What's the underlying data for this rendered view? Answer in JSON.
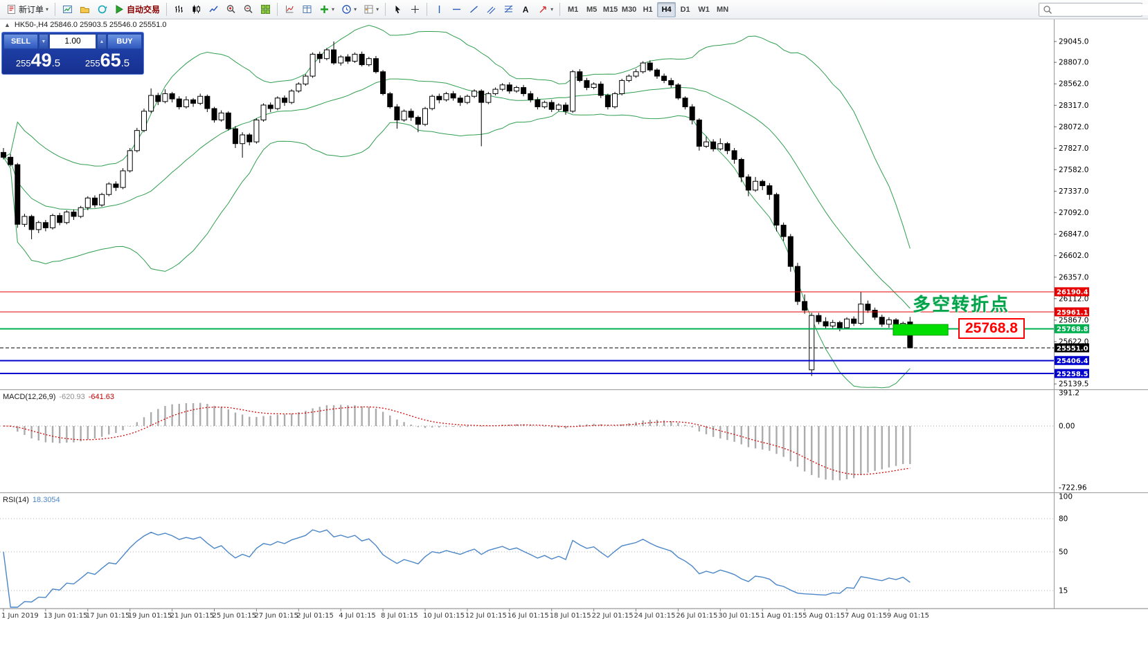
{
  "toolbar": {
    "new_order_label": "新订单",
    "autotrading_label": "自动交易",
    "text_tool_label": "A",
    "timeframes": [
      "M1",
      "M5",
      "M15",
      "M30",
      "H1",
      "H4",
      "D1",
      "W1",
      "MN"
    ],
    "active_timeframe": "H4",
    "search_placeholder": "",
    "icons": [
      "new-order-icon",
      "new-chart-icon",
      "profiles-icon",
      "refresh-icon",
      "autotrading-icon",
      "bar-chart-icon",
      "candlestick-chart-icon",
      "line-chart-icon",
      "zoom-in-icon",
      "zoom-out-icon",
      "tile-windows-icon",
      "indicators-icon",
      "data-window-icon",
      "add-indicator-icon",
      "periods-icon",
      "templates-icon",
      "cursor-icon",
      "crosshair-icon",
      "vertical-line-icon",
      "horizontal-line-icon",
      "trendline-icon",
      "equidistant-channel-icon",
      "fibonacci-icon",
      "text-icon",
      "arrows-icon",
      "search-icon"
    ]
  },
  "one_click": {
    "sell_label": "SELL",
    "buy_label": "BUY",
    "volume": "1.00",
    "sell_price": "25549.5",
    "buy_price": "25565.5",
    "sell_parts": [
      "255",
      "49",
      ".5"
    ],
    "buy_parts": [
      "255",
      "65",
      ".5"
    ],
    "spin_down": "▼",
    "spin_up": "▲"
  },
  "chart": {
    "title": "HK50-,H4  25846.0 25903.5 25546.0 25551.0",
    "symbol": "HK50-",
    "period": "H4",
    "annotation": "多空转折点",
    "callout_price": "25768.8",
    "macd_name": "MACD(12,26,9)",
    "macd_main_value": "-620.93",
    "macd_signal_value": "-641.63",
    "rsi_name": "RSI(14)",
    "rsi_value": "18.3054"
  },
  "colors": {
    "bands": "#2f9e4f",
    "bull_candle": "#ffffff",
    "bear_candle": "#000000",
    "level_red": "#e60000",
    "level_green": "#00b050",
    "level_blue": "#0000cc",
    "current_price_tag": "#000000",
    "highlight_green": "#00dd00",
    "annotation_green": "#00a24a",
    "callout_red": "#ff0000",
    "macd_histogram": "#ababab",
    "macd_signal": "#d40000",
    "rsi_line": "#4a86c8"
  },
  "chart_data": {
    "type": "candlestick",
    "symbol": "HK50-",
    "timeframe": "H4",
    "price_axis_labels": [
      "29045.0",
      "28807.0",
      "28562.0",
      "28317.0",
      "28072.0",
      "27827.0",
      "27582.0",
      "27337.0",
      "27092.0",
      "26847.0",
      "26602.0",
      "26357.0",
      "26112.0",
      "25867.0",
      "25622.0",
      "25139.5"
    ],
    "time_labels": [
      "1 Jun 2019",
      "13 Jun 01:15",
      "17 Jun 01:15",
      "19 Jun 01:15",
      "21 Jun 01:15",
      "25 Jun 01:15",
      "27 Jun 01:15",
      "2 Jul 01:15",
      "4 Jul 01:15",
      "8 Jul 01:15",
      "10 Jul 01:15",
      "12 Jul 01:15",
      "16 Jul 01:15",
      "18 Jul 01:15",
      "22 Jul 01:15",
      "24 Jul 01:15",
      "26 Jul 01:15",
      "30 Jul 01:15",
      "1 Aug 01:15",
      "5 Aug 01:15",
      "7 Aug 01:15",
      "9 Aug 01:15"
    ],
    "label_every_n_bars": 6,
    "levels": [
      {
        "price": 26190.4,
        "color": "#e60000",
        "style": "solid",
        "width": 1
      },
      {
        "price": 25961.1,
        "color": "#e60000",
        "style": "solid",
        "width": 1
      },
      {
        "price": 25768.8,
        "color": "#00b050",
        "style": "solid",
        "width": 2
      },
      {
        "price": 25551.0,
        "color": "#000000",
        "style": "dash",
        "width": 1,
        "is_current_price": true
      },
      {
        "price": 25406.4,
        "color": "#0000cc",
        "style": "solid",
        "width": 2
      },
      {
        "price": 25258.5,
        "color": "#0000cc",
        "style": "solid",
        "width": 2
      }
    ],
    "highlight_box": {
      "bar_start": 126.6,
      "bar_end": 134.4,
      "price_top": 25818,
      "price_bottom": 25695,
      "color": "#00dd00"
    },
    "bollinger": {
      "period": 20,
      "deviation": 2,
      "color": "#2f9e4f"
    },
    "macd": {
      "params": [
        12,
        26,
        9
      ],
      "main_value": -620.93,
      "signal_value": -641.63,
      "axis_labels": [
        "391.2",
        "0.00",
        "-722.96"
      ],
      "histogram_color": "#ababab",
      "signal_color": "#d40000"
    },
    "rsi": {
      "period": 14,
      "value": 18.3054,
      "axis_labels": [
        "100",
        "80",
        "50",
        "15"
      ],
      "levels": [
        80,
        50,
        15
      ],
      "color": "#4a86c8"
    },
    "candles_ohlc": [
      [
        27780,
        27830,
        27700,
        27725
      ],
      [
        27725,
        27760,
        27620,
        27640
      ],
      [
        27640,
        27660,
        26920,
        26960
      ],
      [
        26960,
        27080,
        26930,
        27050
      ],
      [
        27050,
        27070,
        26790,
        26900
      ],
      [
        26900,
        27000,
        26860,
        26980
      ],
      [
        26980,
        27010,
        26880,
        26920
      ],
      [
        26920,
        27080,
        26900,
        27060
      ],
      [
        27060,
        27090,
        26950,
        26980
      ],
      [
        26980,
        27120,
        26960,
        27100
      ],
      [
        27100,
        27130,
        27010,
        27050
      ],
      [
        27050,
        27170,
        27030,
        27150
      ],
      [
        27150,
        27280,
        27120,
        27260
      ],
      [
        27260,
        27290,
        27150,
        27180
      ],
      [
        27180,
        27320,
        27160,
        27300
      ],
      [
        27300,
        27440,
        27280,
        27420
      ],
      [
        27420,
        27450,
        27340,
        27380
      ],
      [
        27380,
        27600,
        27360,
        27570
      ],
      [
        27570,
        27830,
        27550,
        27800
      ],
      [
        27800,
        28060,
        27780,
        28030
      ],
      [
        28030,
        28280,
        28010,
        28250
      ],
      [
        28250,
        28510,
        28230,
        28430
      ],
      [
        28430,
        28460,
        28320,
        28360
      ],
      [
        28360,
        28500,
        28340,
        28450
      ],
      [
        28450,
        28470,
        28350,
        28390
      ],
      [
        28390,
        28420,
        28270,
        28300
      ],
      [
        28300,
        28420,
        28280,
        28380
      ],
      [
        28380,
        28400,
        28300,
        28340
      ],
      [
        28340,
        28450,
        28320,
        28420
      ],
      [
        28420,
        28440,
        28240,
        28280
      ],
      [
        28280,
        28300,
        28120,
        28150
      ],
      [
        28150,
        28260,
        28130,
        28230
      ],
      [
        28230,
        28250,
        28030,
        28050
      ],
      [
        28050,
        28080,
        27830,
        27880
      ],
      [
        27880,
        28010,
        27720,
        27980
      ],
      [
        27980,
        28000,
        27860,
        27900
      ],
      [
        27900,
        28170,
        27880,
        28150
      ],
      [
        28150,
        28340,
        28130,
        28320
      ],
      [
        28320,
        28350,
        28240,
        28280
      ],
      [
        28280,
        28420,
        28260,
        28400
      ],
      [
        28400,
        28430,
        28310,
        28350
      ],
      [
        28350,
        28500,
        28330,
        28480
      ],
      [
        28480,
        28580,
        28460,
        28560
      ],
      [
        28560,
        28670,
        28540,
        28650
      ],
      [
        28650,
        28920,
        28630,
        28900
      ],
      [
        28900,
        28930,
        28800,
        28850
      ],
      [
        28850,
        28970,
        28830,
        28950
      ],
      [
        28950,
        29045,
        28780,
        28800
      ],
      [
        28800,
        28890,
        28770,
        28870
      ],
      [
        28870,
        28900,
        28790,
        28820
      ],
      [
        28820,
        28920,
        28800,
        28900
      ],
      [
        28900,
        28930,
        28760,
        28780
      ],
      [
        28780,
        28870,
        28760,
        28850
      ],
      [
        28850,
        28880,
        28680,
        28700
      ],
      [
        28700,
        28720,
        28430,
        28450
      ],
      [
        28450,
        28470,
        28280,
        28300
      ],
      [
        28300,
        28330,
        28050,
        28150
      ],
      [
        28150,
        28270,
        28130,
        28250
      ],
      [
        28250,
        28280,
        28140,
        28180
      ],
      [
        28180,
        28200,
        28010,
        28100
      ],
      [
        28100,
        28300,
        28080,
        28280
      ],
      [
        28280,
        28440,
        28260,
        28420
      ],
      [
        28420,
        28450,
        28340,
        28380
      ],
      [
        28380,
        28470,
        28360,
        28450
      ],
      [
        28450,
        28480,
        28370,
        28400
      ],
      [
        28400,
        28430,
        28310,
        28350
      ],
      [
        28350,
        28440,
        28330,
        28420
      ],
      [
        28420,
        28500,
        28400,
        28480
      ],
      [
        28480,
        28500,
        27850,
        28350
      ],
      [
        28350,
        28470,
        28330,
        28450
      ],
      [
        28450,
        28520,
        28430,
        28500
      ],
      [
        28500,
        28570,
        28480,
        28550
      ],
      [
        28550,
        28580,
        28450,
        28480
      ],
      [
        28480,
        28540,
        28460,
        28520
      ],
      [
        28520,
        28550,
        28420,
        28450
      ],
      [
        28450,
        28480,
        28350,
        28380
      ],
      [
        28380,
        28410,
        28270,
        28300
      ],
      [
        28300,
        28370,
        28280,
        28350
      ],
      [
        28350,
        28380,
        28240,
        28270
      ],
      [
        28270,
        28340,
        28250,
        28320
      ],
      [
        28320,
        28350,
        28210,
        28250
      ],
      [
        28250,
        28720,
        28230,
        28700
      ],
      [
        28700,
        28730,
        28580,
        28600
      ],
      [
        28600,
        28630,
        28490,
        28520
      ],
      [
        28520,
        28580,
        28500,
        28560
      ],
      [
        28560,
        28590,
        28400,
        28430
      ],
      [
        28430,
        28450,
        28270,
        28300
      ],
      [
        28300,
        28470,
        28280,
        28450
      ],
      [
        28450,
        28620,
        28430,
        28600
      ],
      [
        28600,
        28670,
        28580,
        28650
      ],
      [
        28650,
        28730,
        28630,
        28700
      ],
      [
        28700,
        28820,
        28680,
        28800
      ],
      [
        28800,
        28830,
        28700,
        28720
      ],
      [
        28720,
        28740,
        28620,
        28650
      ],
      [
        28650,
        28680,
        28570,
        28600
      ],
      [
        28600,
        28630,
        28520,
        28550
      ],
      [
        28550,
        28570,
        28380,
        28400
      ],
      [
        28400,
        28420,
        28270,
        28300
      ],
      [
        28300,
        28330,
        28100,
        28150
      ],
      [
        28150,
        28170,
        27800,
        27850
      ],
      [
        27850,
        27960,
        27830,
        27900
      ],
      [
        27900,
        27930,
        27790,
        27820
      ],
      [
        27820,
        27940,
        27800,
        27880
      ],
      [
        27880,
        27900,
        27760,
        27800
      ],
      [
        27800,
        27830,
        27650,
        27700
      ],
      [
        27700,
        27720,
        27440,
        27500
      ],
      [
        27500,
        27530,
        27280,
        27350
      ],
      [
        27350,
        27500,
        27330,
        27450
      ],
      [
        27450,
        27470,
        27350,
        27400
      ],
      [
        27400,
        27430,
        27240,
        27300
      ],
      [
        27300,
        27320,
        26880,
        26950
      ],
      [
        26950,
        26980,
        26770,
        26820
      ],
      [
        26820,
        26850,
        26420,
        26480
      ],
      [
        26480,
        26520,
        26040,
        26080
      ],
      [
        26080,
        26160,
        25940,
        25980
      ],
      [
        25300,
        25950,
        25230,
        25920
      ],
      [
        25920,
        25950,
        25820,
        25850
      ],
      [
        25850,
        25900,
        25760,
        25800
      ],
      [
        25800,
        25870,
        25770,
        25840
      ],
      [
        25840,
        25860,
        25740,
        25780
      ],
      [
        25780,
        25900,
        25760,
        25880
      ],
      [
        25880,
        25910,
        25800,
        25830
      ],
      [
        25830,
        26185,
        25810,
        26050
      ],
      [
        26050,
        26090,
        25950,
        25980
      ],
      [
        25980,
        26010,
        25870,
        25900
      ],
      [
        25900,
        25930,
        25790,
        25820
      ],
      [
        25820,
        25900,
        25780,
        25870
      ],
      [
        25870,
        25890,
        25760,
        25790
      ],
      [
        25790,
        25850,
        25750,
        25830
      ],
      [
        25846,
        25903.5,
        25546,
        25551
      ]
    ]
  }
}
